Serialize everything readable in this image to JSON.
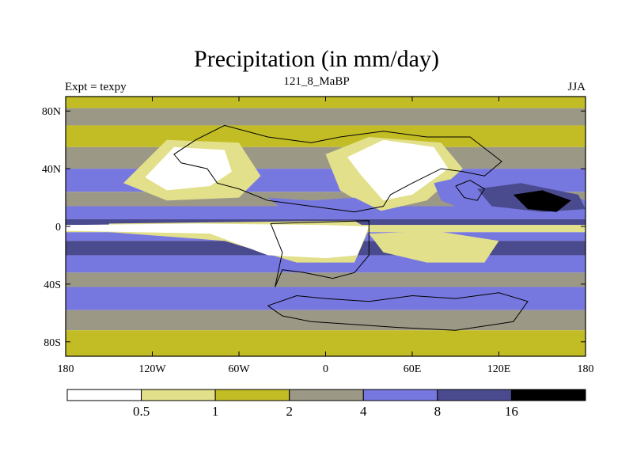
{
  "chart_data": {
    "type": "heatmap",
    "title": "Precipitation (in mm/day)",
    "subtitle": "121_8_MaBP",
    "left_label": "Expt = texpy",
    "right_label": "JJA",
    "xlim": [
      -180,
      180
    ],
    "ylim": [
      -90,
      90
    ],
    "x_ticks": [
      {
        "value": -180,
        "label": "180"
      },
      {
        "value": -120,
        "label": "120W"
      },
      {
        "value": -60,
        "label": "60W"
      },
      {
        "value": 0,
        "label": "0"
      },
      {
        "value": 60,
        "label": "60E"
      },
      {
        "value": 120,
        "label": "120E"
      },
      {
        "value": 180,
        "label": "180"
      }
    ],
    "y_ticks": [
      {
        "value": 80,
        "label": "80N"
      },
      {
        "value": 40,
        "label": "40N"
      },
      {
        "value": 0,
        "label": "0"
      },
      {
        "value": -40,
        "label": "40S"
      },
      {
        "value": -80,
        "label": "80S"
      }
    ],
    "levels": [
      0.5,
      1,
      2,
      4,
      8,
      16
    ],
    "level_labels": [
      "0.5",
      "1",
      "2",
      "4",
      "8",
      "16"
    ],
    "bins": [
      {
        "range": "< 0.5",
        "color": "#ffffff"
      },
      {
        "range": "0.5-1",
        "color": "#e2e08a"
      },
      {
        "range": "1-2",
        "color": "#c3bd25"
      },
      {
        "range": "2-4",
        "color": "#9c9886"
      },
      {
        "range": "4-8",
        "color": "#7777e0"
      },
      {
        "range": "8-16",
        "color": "#4a4a8e"
      },
      {
        "range": "> 16",
        "color": "#000000"
      }
    ],
    "zonal_bands": [
      {
        "lat_from": 90,
        "lat_to": 82,
        "bin": 2
      },
      {
        "lat_from": 82,
        "lat_to": 70,
        "bin": 3
      },
      {
        "lat_from": 70,
        "lat_to": 55,
        "bin": 2
      },
      {
        "lat_from": 55,
        "lat_to": 40,
        "bin": 3
      },
      {
        "lat_from": 40,
        "lat_to": 24,
        "bin": 4
      },
      {
        "lat_from": 24,
        "lat_to": 14,
        "bin": 3
      },
      {
        "lat_from": 14,
        "lat_to": 5,
        "bin": 4
      },
      {
        "lat_from": 5,
        "lat_to": 1,
        "bin": 5
      },
      {
        "lat_from": 1,
        "lat_to": -4,
        "bin": 1
      },
      {
        "lat_from": -4,
        "lat_to": -10,
        "bin": 4
      },
      {
        "lat_from": -10,
        "lat_to": -20,
        "bin": 5
      },
      {
        "lat_from": -20,
        "lat_to": -32,
        "bin": 4
      },
      {
        "lat_from": -32,
        "lat_to": -42,
        "bin": 3
      },
      {
        "lat_from": -42,
        "lat_to": -58,
        "bin": 4
      },
      {
        "lat_from": -58,
        "lat_to": -72,
        "bin": 3
      },
      {
        "lat_from": -72,
        "lat_to": -90,
        "bin": 2
      }
    ],
    "regions": [
      {
        "name": "sahara-gondwana-dry-belt",
        "bin": 1,
        "points": [
          [
            -150,
            2
          ],
          [
            -60,
            3
          ],
          [
            20,
            4
          ],
          [
            30,
            -2
          ],
          [
            20,
            -25
          ],
          [
            -20,
            -25
          ],
          [
            -70,
            -10
          ],
          [
            -150,
            -4
          ]
        ]
      },
      {
        "name": "equatorial-dry-core",
        "bin": 0,
        "points": [
          [
            -180,
            1
          ],
          [
            -90,
            2
          ],
          [
            0,
            1
          ],
          [
            30,
            0
          ],
          [
            22,
            -20
          ],
          [
            0,
            -22
          ],
          [
            -40,
            -20
          ],
          [
            -80,
            -5
          ],
          [
            -180,
            -3
          ]
        ]
      },
      {
        "name": "laurasia-west-dry",
        "bin": 1,
        "points": [
          [
            -140,
            30
          ],
          [
            -110,
            60
          ],
          [
            -60,
            58
          ],
          [
            -45,
            35
          ],
          [
            -60,
            20
          ],
          [
            -110,
            18
          ]
        ]
      },
      {
        "name": "laurasia-west-arid",
        "bin": 0,
        "points": [
          [
            -125,
            34
          ],
          [
            -105,
            55
          ],
          [
            -70,
            53
          ],
          [
            -65,
            38
          ],
          [
            -80,
            28
          ],
          [
            -110,
            25
          ]
        ]
      },
      {
        "name": "laurasia-east-dry",
        "bin": 1,
        "points": [
          [
            0,
            50
          ],
          [
            30,
            62
          ],
          [
            80,
            58
          ],
          [
            95,
            40
          ],
          [
            70,
            18
          ],
          [
            35,
            10
          ],
          [
            10,
            25
          ]
        ]
      },
      {
        "name": "laurasia-east-arid",
        "bin": 0,
        "points": [
          [
            15,
            48
          ],
          [
            40,
            60
          ],
          [
            75,
            55
          ],
          [
            85,
            40
          ],
          [
            60,
            22
          ],
          [
            40,
            18
          ],
          [
            25,
            35
          ]
        ]
      },
      {
        "name": "monsoon-wet-region",
        "bin": 4,
        "points": [
          [
            75,
            30
          ],
          [
            110,
            38
          ],
          [
            150,
            30
          ],
          [
            180,
            18
          ],
          [
            180,
            6
          ],
          [
            140,
            8
          ],
          [
            100,
            10
          ],
          [
            80,
            18
          ]
        ]
      },
      {
        "name": "west-pacific-heavy-rain",
        "bin": 5,
        "points": [
          [
            105,
            26
          ],
          [
            135,
            30
          ],
          [
            175,
            22
          ],
          [
            180,
            12
          ],
          [
            150,
            10
          ],
          [
            115,
            14
          ]
        ]
      },
      {
        "name": "monsoon-core-extreme",
        "bin": 6,
        "points": [
          [
            130,
            22
          ],
          [
            150,
            25
          ],
          [
            170,
            18
          ],
          [
            160,
            10
          ],
          [
            140,
            12
          ]
        ]
      },
      {
        "name": "tethys-wet-strip",
        "bin": 4,
        "points": [
          [
            -40,
            20
          ],
          [
            -10,
            18
          ],
          [
            20,
            20
          ],
          [
            40,
            10
          ],
          [
            10,
            8
          ],
          [
            -30,
            12
          ]
        ]
      },
      {
        "name": "southern-gondwana-dry",
        "bin": 1,
        "points": [
          [
            30,
            -5
          ],
          [
            75,
            -3
          ],
          [
            120,
            -10
          ],
          [
            110,
            -25
          ],
          [
            70,
            -25
          ],
          [
            40,
            -18
          ]
        ]
      }
    ],
    "coastlines": [
      [
        [
          -90,
          60
        ],
        [
          -70,
          70
        ],
        [
          -40,
          62
        ],
        [
          -10,
          58
        ],
        [
          10,
          62
        ],
        [
          40,
          66
        ],
        [
          70,
          62
        ],
        [
          100,
          62
        ],
        [
          122,
          45
        ],
        [
          110,
          35
        ],
        [
          95,
          38
        ],
        [
          80,
          40
        ],
        [
          60,
          30
        ],
        [
          45,
          22
        ],
        [
          40,
          14
        ],
        [
          20,
          10
        ],
        [
          -10,
          14
        ],
        [
          -40,
          18
        ],
        [
          -60,
          26
        ],
        [
          -75,
          30
        ],
        [
          -82,
          40
        ],
        [
          -100,
          44
        ],
        [
          -105,
          50
        ],
        [
          -90,
          60
        ]
      ],
      [
        [
          -38,
          2
        ],
        [
          30,
          4
        ],
        [
          30,
          -20
        ],
        [
          20,
          -32
        ],
        [
          5,
          -36
        ],
        [
          -15,
          -32
        ],
        [
          -30,
          -30
        ],
        [
          -35,
          -42
        ],
        [
          -30,
          -18
        ],
        [
          -38,
          2
        ]
      ],
      [
        [
          -40,
          -55
        ],
        [
          -20,
          -48
        ],
        [
          0,
          -50
        ],
        [
          30,
          -52
        ],
        [
          60,
          -48
        ],
        [
          90,
          -50
        ],
        [
          120,
          -46
        ],
        [
          140,
          -52
        ],
        [
          130,
          -66
        ],
        [
          90,
          -72
        ],
        [
          50,
          -70
        ],
        [
          20,
          -68
        ],
        [
          -10,
          -66
        ],
        [
          -30,
          -62
        ],
        [
          -40,
          -55
        ]
      ],
      [
        [
          90,
          28
        ],
        [
          100,
          32
        ],
        [
          110,
          26
        ],
        [
          105,
          18
        ],
        [
          96,
          20
        ],
        [
          90,
          28
        ]
      ]
    ]
  }
}
